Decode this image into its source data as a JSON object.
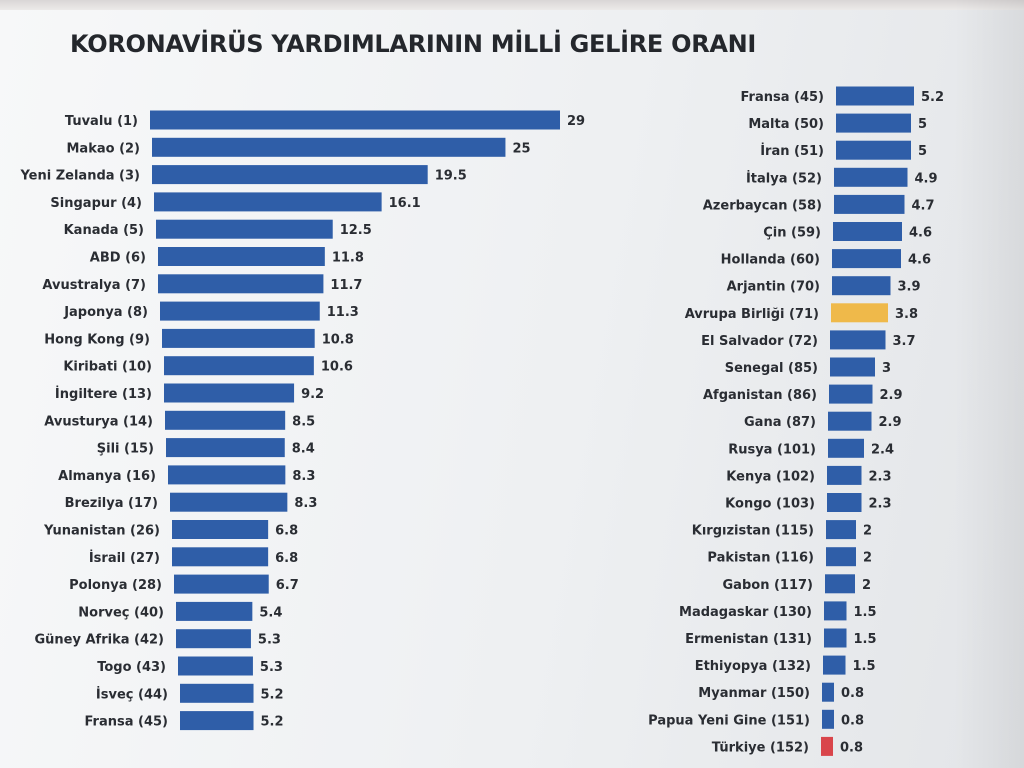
{
  "title": "KORONAVİRÜS YARDIMLARININ MİLLİ GELİRE ORANI",
  "colors": {
    "bar": "#2f5ea8",
    "highlight_eu": "#efb94a",
    "highlight_tr": "#d9454b"
  },
  "chart_data": [
    {
      "type": "bar",
      "orientation": "horizontal",
      "categories": [
        "Tuvalu (1)",
        "Makao (2)",
        "Yeni Zelanda (3)",
        "Singapur (4)",
        "Kanada (5)",
        "ABD (6)",
        "Avustralya (7)",
        "Japonya (8)",
        "Hong Kong (9)",
        "Kiribati (10)",
        "İngiltere (13)",
        "Avusturya (14)",
        "Şili (15)",
        "Almanya (16)",
        "Brezilya (17)",
        "Yunanistan (26)",
        "İsrail (27)",
        "Polonya (28)",
        "Norveç (40)",
        "Güney Afrika (42)",
        "Togo (43)",
        "İsveç (44)",
        "Fransa (45)"
      ],
      "values": [
        29,
        25,
        19.5,
        16.1,
        12.5,
        11.8,
        11.7,
        11.3,
        10.8,
        10.6,
        9.2,
        8.5,
        8.4,
        8.3,
        8.3,
        6.8,
        6.8,
        6.7,
        5.4,
        5.3,
        5.3,
        5.2,
        5.2
      ],
      "value_labels": [
        "29",
        "25",
        "19.5",
        "16.1",
        "12.5",
        "11.8",
        "11.7",
        "11.3",
        "10.8",
        "10.6",
        "9.2",
        "8.5",
        "8.4",
        "8.3",
        "8.3",
        "6.8",
        "6.8",
        "6.7",
        "5.4",
        "5.3",
        "5.3",
        "5.2",
        "5.2"
      ],
      "xlim": [
        0,
        29
      ]
    },
    {
      "type": "bar",
      "orientation": "horizontal",
      "categories": [
        "Fransa (45)",
        "Malta (50)",
        "İran (51)",
        "İtalya (52)",
        "Azerbaycan (58)",
        "Çin (59)",
        "Hollanda (60)",
        "Arjantin (70)",
        "Avrupa Birliği (71)",
        "El Salvador (72)",
        "Senegal (85)",
        "Afganistan (86)",
        "Gana (87)",
        "Rusya (101)",
        "Kenya (102)",
        "Kongo (103)",
        "Kırgızistan (115)",
        "Pakistan (116)",
        "Gabon (117)",
        "Madagaskar (130)",
        "Ermenistan (131)",
        "Ethiyopya (132)",
        "Myanmar (150)",
        "Papua Yeni Gine (151)",
        "Türkiye (152)"
      ],
      "values": [
        5.2,
        5,
        5,
        4.9,
        4.7,
        4.6,
        4.6,
        3.9,
        3.8,
        3.7,
        3,
        2.9,
        2.9,
        2.4,
        2.3,
        2.3,
        2,
        2,
        2,
        1.5,
        1.5,
        1.5,
        0.8,
        0.8,
        0.8
      ],
      "value_labels": [
        "5.2",
        "5",
        "5",
        "4.9",
        "4.7",
        "4.6",
        "4.6",
        "3.9",
        "3.8",
        "3.7",
        "3",
        "2.9",
        "2.9",
        "2.4",
        "2.3",
        "2.3",
        "2",
        "2",
        "2",
        "1.5",
        "1.5",
        "1.5",
        "0.8",
        "0.8",
        "0.8"
      ],
      "highlights": {
        "Avrupa Birliği (71)": "highlight_eu",
        "Türkiye (152)": "highlight_tr"
      },
      "xlim": [
        0,
        5.2
      ]
    }
  ]
}
